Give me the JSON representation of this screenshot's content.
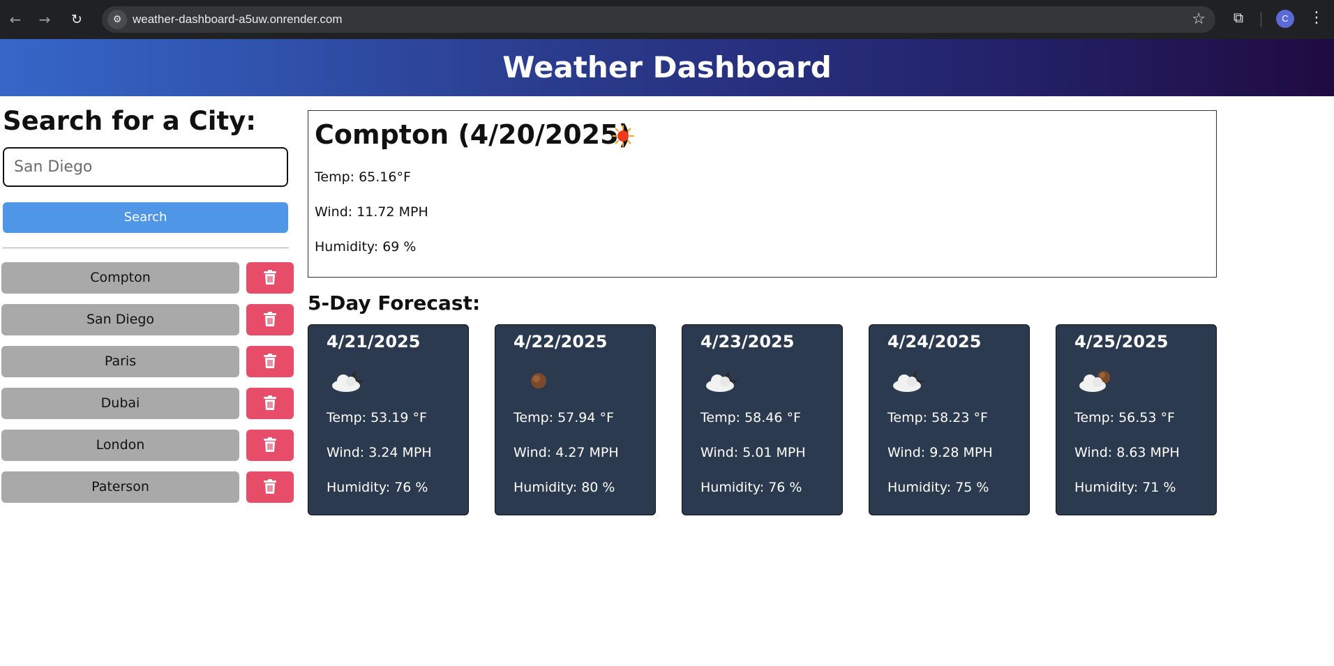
{
  "browser": {
    "url": "weather-dashboard-a5uw.onrender.com",
    "profile_initial": "C"
  },
  "app": {
    "title": "Weather Dashboard"
  },
  "sidebar": {
    "heading": "Search for a City:",
    "input_placeholder": "San Diego",
    "search_label": "Search",
    "history": [
      {
        "city": "Compton"
      },
      {
        "city": "San Diego"
      },
      {
        "city": "Paris"
      },
      {
        "city": "Dubai"
      },
      {
        "city": "London"
      },
      {
        "city": "Paterson"
      }
    ],
    "delete_color": "#e74c68"
  },
  "current": {
    "title": "Compton (4/20/2025)",
    "icon": "sun-icon",
    "temp": "Temp: 65.16°F",
    "wind": "Wind: 11.72 MPH",
    "humidity": "Humidity: 69 %"
  },
  "forecast": {
    "heading": "5-Day Forecast:",
    "days": [
      {
        "date": "4/21/2025",
        "icon": "cloud-moon-icon",
        "temp": "Temp: 53.19 °F",
        "wind": "Wind: 3.24 MPH",
        "humidity": "Humidity: 76 %"
      },
      {
        "date": "4/22/2025",
        "icon": "moon-icon",
        "temp": "Temp: 57.94 °F",
        "wind": "Wind: 4.27 MPH",
        "humidity": "Humidity: 80 %"
      },
      {
        "date": "4/23/2025",
        "icon": "cloud-moon-icon",
        "temp": "Temp: 58.46 °F",
        "wind": "Wind: 5.01 MPH",
        "humidity": "Humidity: 76 %"
      },
      {
        "date": "4/24/2025",
        "icon": "cloud-moon-icon",
        "temp": "Temp: 58.23 °F",
        "wind": "Wind: 9.28 MPH",
        "humidity": "Humidity: 75 %"
      },
      {
        "date": "4/25/2025",
        "icon": "cloud-moon-brown-icon",
        "temp": "Temp: 56.53 °F",
        "wind": "Wind: 8.63 MPH",
        "humidity": "Humidity: 71 %"
      }
    ]
  }
}
